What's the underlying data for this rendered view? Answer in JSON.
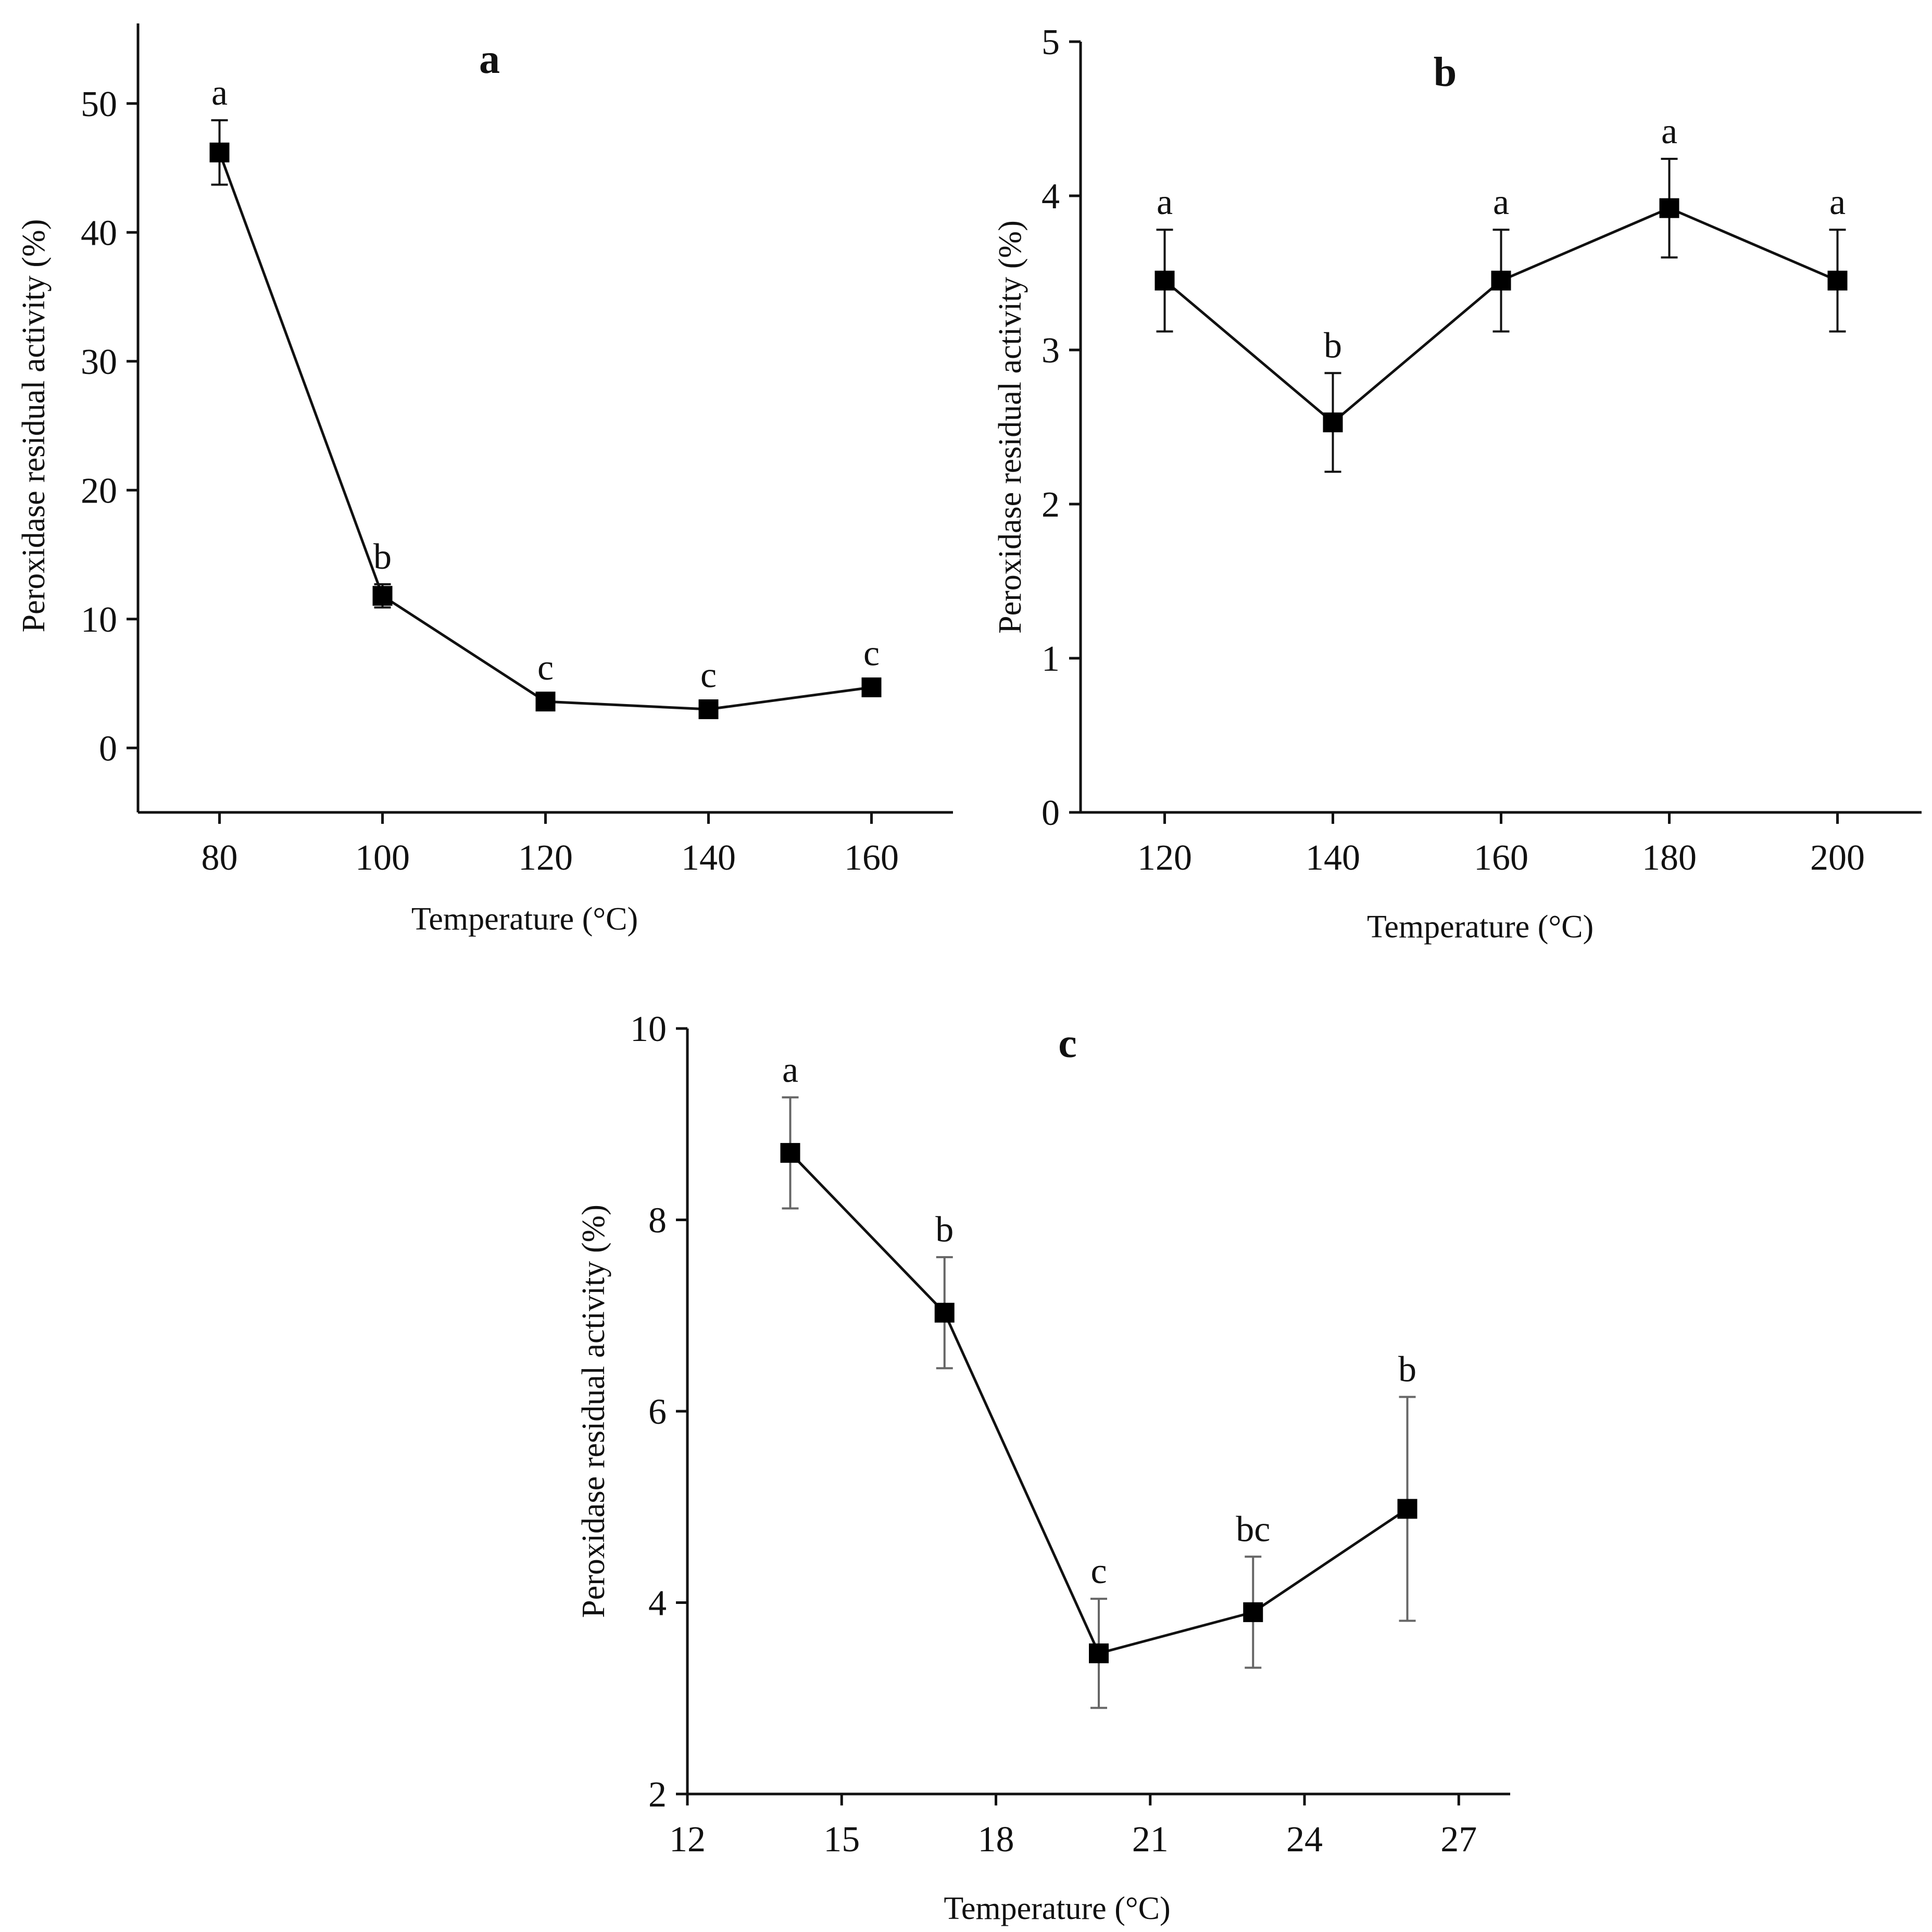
{
  "chart_data": [
    {
      "type": "line",
      "title": "a",
      "xlabel": "Temperature (°C)",
      "ylabel": "Peroxidase residual activity (%)",
      "xlim": [
        70,
        170
      ],
      "ylim": [
        -5,
        55
      ],
      "xticks": [
        80,
        100,
        120,
        140,
        160
      ],
      "yticks": [
        0,
        10,
        20,
        30,
        40,
        50
      ],
      "series": [
        {
          "name": "a",
          "x": [
            80,
            100,
            120,
            140,
            160
          ],
          "y": [
            46.2,
            11.8,
            3.6,
            3.0,
            4.7
          ],
          "err": [
            2.5,
            0.9,
            0.5,
            0.5,
            0.5
          ],
          "labels": [
            "a",
            "b",
            "c",
            "c",
            "c"
          ]
        }
      ]
    },
    {
      "type": "line",
      "title": "b",
      "xlabel": "Temperature (°C)",
      "ylabel": "Peroxidase residual activity (%)",
      "xlim": [
        110,
        210
      ],
      "ylim": [
        0,
        5
      ],
      "xticks": [
        120,
        140,
        160,
        180,
        200
      ],
      "yticks": [
        0,
        1,
        2,
        3,
        4,
        5
      ],
      "series": [
        {
          "name": "b",
          "x": [
            120,
            140,
            160,
            180,
            200
          ],
          "y": [
            3.45,
            2.53,
            3.45,
            3.92,
            3.45
          ],
          "err": [
            0.33,
            0.32,
            0.33,
            0.32,
            0.33
          ],
          "labels": [
            "a",
            "b",
            "a",
            "a",
            "a"
          ]
        }
      ]
    },
    {
      "type": "line",
      "title": "c",
      "xlabel": "Temperature (°C)",
      "ylabel": "Peroxidase residual activity (%)",
      "xlim": [
        12,
        28
      ],
      "ylim": [
        2,
        10
      ],
      "xticks": [
        12,
        15,
        18,
        21,
        24,
        27
      ],
      "yticks": [
        2,
        4,
        6,
        8,
        10
      ],
      "series": [
        {
          "name": "c",
          "x": [
            14,
            17,
            20,
            23,
            26
          ],
          "y": [
            8.7,
            7.03,
            3.47,
            3.9,
            4.98
          ],
          "err": [
            0.58,
            0.58,
            0.57,
            0.58,
            1.17
          ],
          "labels": [
            "a",
            "b",
            "c",
            "bc",
            "b"
          ]
        }
      ]
    }
  ]
}
